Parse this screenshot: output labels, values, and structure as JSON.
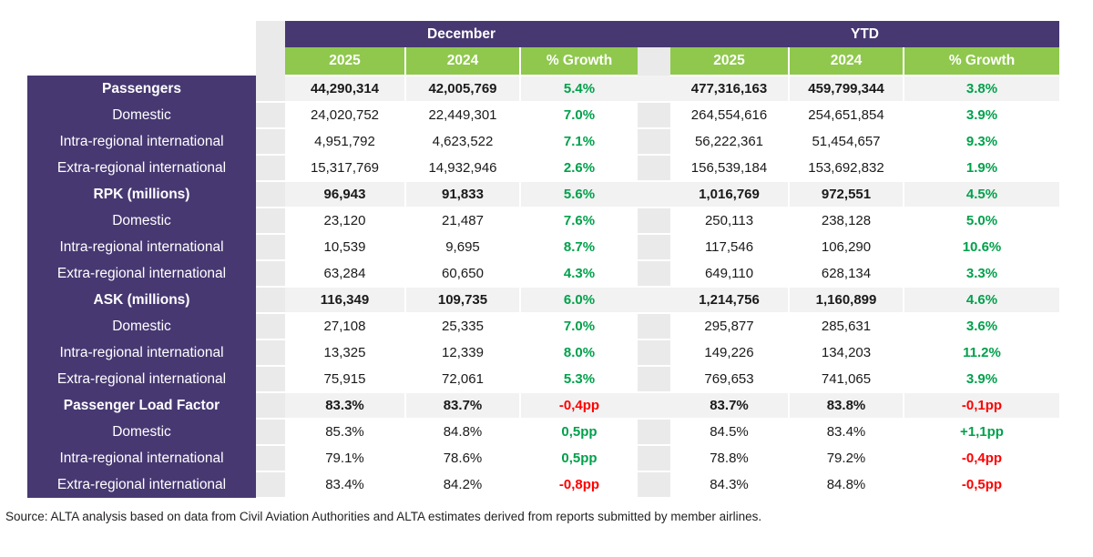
{
  "chart_data": {
    "type": "table",
    "group_headers": [
      "December",
      "YTD"
    ],
    "sub_headers": [
      "2025",
      "2024",
      "% Growth"
    ],
    "rows": [
      {
        "label": "Passengers",
        "is_section": true,
        "december": {
          "y2025": "44,290,314",
          "y2024": "42,005,769",
          "growth": "5.4%",
          "growth_direction": "positive"
        },
        "ytd": {
          "y2025": "477,316,163",
          "y2024": "459,799,344",
          "growth": "3.8%",
          "growth_direction": "positive"
        }
      },
      {
        "label": "Domestic",
        "is_section": false,
        "december": {
          "y2025": "24,020,752",
          "y2024": "22,449,301",
          "growth": "7.0%",
          "growth_direction": "positive"
        },
        "ytd": {
          "y2025": "264,554,616",
          "y2024": "254,651,854",
          "growth": "3.9%",
          "growth_direction": "positive"
        }
      },
      {
        "label": "Intra-regional international",
        "is_section": false,
        "december": {
          "y2025": "4,951,792",
          "y2024": "4,623,522",
          "growth": "7.1%",
          "growth_direction": "positive"
        },
        "ytd": {
          "y2025": "56,222,361",
          "y2024": "51,454,657",
          "growth": "9.3%",
          "growth_direction": "positive"
        }
      },
      {
        "label": "Extra-regional international",
        "is_section": false,
        "december": {
          "y2025": "15,317,769",
          "y2024": "14,932,946",
          "growth": "2.6%",
          "growth_direction": "positive"
        },
        "ytd": {
          "y2025": "156,539,184",
          "y2024": "153,692,832",
          "growth": "1.9%",
          "growth_direction": "positive"
        }
      },
      {
        "label": "RPK (millions)",
        "is_section": true,
        "december": {
          "y2025": "96,943",
          "y2024": "91,833",
          "growth": "5.6%",
          "growth_direction": "positive"
        },
        "ytd": {
          "y2025": "1,016,769",
          "y2024": "972,551",
          "growth": "4.5%",
          "growth_direction": "positive"
        }
      },
      {
        "label": "Domestic",
        "is_section": false,
        "december": {
          "y2025": "23,120",
          "y2024": "21,487",
          "growth": "7.6%",
          "growth_direction": "positive"
        },
        "ytd": {
          "y2025": "250,113",
          "y2024": "238,128",
          "growth": "5.0%",
          "growth_direction": "positive"
        }
      },
      {
        "label": "Intra-regional international",
        "is_section": false,
        "december": {
          "y2025": "10,539",
          "y2024": "9,695",
          "growth": "8.7%",
          "growth_direction": "positive"
        },
        "ytd": {
          "y2025": "117,546",
          "y2024": "106,290",
          "growth": "10.6%",
          "growth_direction": "positive"
        }
      },
      {
        "label": "Extra-regional international",
        "is_section": false,
        "december": {
          "y2025": "63,284",
          "y2024": "60,650",
          "growth": "4.3%",
          "growth_direction": "positive"
        },
        "ytd": {
          "y2025": "649,110",
          "y2024": "628,134",
          "growth": "3.3%",
          "growth_direction": "positive"
        }
      },
      {
        "label": "ASK (millions)",
        "is_section": true,
        "december": {
          "y2025": "116,349",
          "y2024": "109,735",
          "growth": "6.0%",
          "growth_direction": "positive"
        },
        "ytd": {
          "y2025": "1,214,756",
          "y2024": "1,160,899",
          "growth": "4.6%",
          "growth_direction": "positive"
        }
      },
      {
        "label": "Domestic",
        "is_section": false,
        "december": {
          "y2025": "27,108",
          "y2024": "25,335",
          "growth": "7.0%",
          "growth_direction": "positive"
        },
        "ytd": {
          "y2025": "295,877",
          "y2024": "285,631",
          "growth": "3.6%",
          "growth_direction": "positive"
        }
      },
      {
        "label": "Intra-regional international",
        "is_section": false,
        "december": {
          "y2025": "13,325",
          "y2024": "12,339",
          "growth": "8.0%",
          "growth_direction": "positive"
        },
        "ytd": {
          "y2025": "149,226",
          "y2024": "134,203",
          "growth": "11.2%",
          "growth_direction": "positive"
        }
      },
      {
        "label": "Extra-regional international",
        "is_section": false,
        "december": {
          "y2025": "75,915",
          "y2024": "72,061",
          "growth": "5.3%",
          "growth_direction": "positive"
        },
        "ytd": {
          "y2025": "769,653",
          "y2024": "741,065",
          "growth": "3.9%",
          "growth_direction": "positive"
        }
      },
      {
        "label": "Passenger Load Factor",
        "is_section": true,
        "december": {
          "y2025": "83.3%",
          "y2024": "83.7%",
          "growth": "-0,4pp",
          "growth_direction": "negative"
        },
        "ytd": {
          "y2025": "83.7%",
          "y2024": "83.8%",
          "growth": "-0,1pp",
          "growth_direction": "negative"
        }
      },
      {
        "label": "Domestic",
        "is_section": false,
        "december": {
          "y2025": "85.3%",
          "y2024": "84.8%",
          "growth": "0,5pp",
          "growth_direction": "positive"
        },
        "ytd": {
          "y2025": "84.5%",
          "y2024": "83.4%",
          "growth": "+1,1pp",
          "growth_direction": "positive"
        }
      },
      {
        "label": "Intra-regional international",
        "is_section": false,
        "december": {
          "y2025": "79.1%",
          "y2024": "78.6%",
          "growth": "0,5pp",
          "growth_direction": "positive"
        },
        "ytd": {
          "y2025": "78.8%",
          "y2024": "79.2%",
          "growth": "-0,4pp",
          "growth_direction": "negative"
        }
      },
      {
        "label": "Extra-regional international",
        "is_section": false,
        "december": {
          "y2025": "83.4%",
          "y2024": "84.2%",
          "growth": "-0,8pp",
          "growth_direction": "negative"
        },
        "ytd": {
          "y2025": "84.3%",
          "y2024": "84.8%",
          "growth": "-0,5pp",
          "growth_direction": "negative"
        }
      }
    ]
  },
  "footer": {
    "source_text": "Source: ALTA analysis based on data from Civil Aviation Authorities and ALTA estimates derived from reports submitted by member airlines."
  },
  "colors": {
    "header_purple": "#473872",
    "header_green": "#8FC84D",
    "positive_green": "#00A14B",
    "negative_red": "#FE0000",
    "section_row_bg": "#F2F2F2",
    "spacer_gray": "#EAEAEA"
  }
}
